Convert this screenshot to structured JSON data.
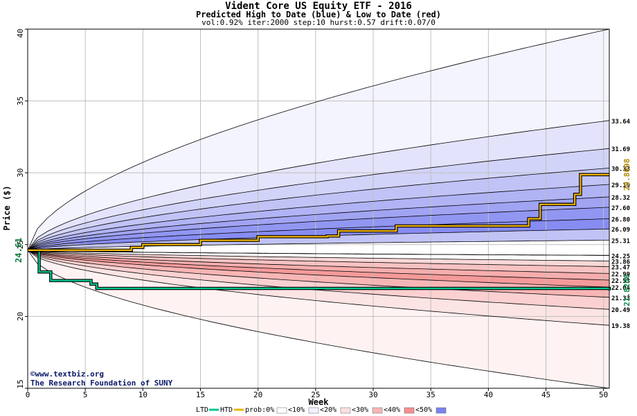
{
  "header": {
    "title": "Vident Core US Equity ETF - 2016",
    "subtitle": "Predicted High to Date (blue) &  Low to Date (red)",
    "params": "vol:0.92% iter:2000 step:10 hurst:0.57 drift:0.07/0"
  },
  "credits": {
    "site": "©www.textbiz.org",
    "org": "The Research Foundation of SUNY"
  },
  "legend": {
    "ltd": "LTD",
    "htd": "HTD",
    "prob": "prob:0%",
    "lt10": "<10%",
    "lt20": "<20%",
    "lt30": "<30%",
    "lt40": "<40%",
    "lt50": "<50%"
  },
  "colors": {
    "htd_line": "#f0b400",
    "ltd_line": "#00c890",
    "blue_band": "#8a8ff2",
    "red_band": "#f58f8f",
    "grid": "#bfbfbf"
  },
  "chart_data": {
    "type": "area",
    "xlabel": "Week",
    "ylabel": "Price ($)",
    "xlim": [
      0,
      50.5
    ],
    "ylim": [
      15,
      40
    ],
    "xticks": [
      0,
      5,
      10,
      15,
      20,
      25,
      30,
      35,
      40,
      45,
      50
    ],
    "yticks": [
      15,
      20,
      25,
      30,
      35,
      40
    ],
    "start_price": "24.61",
    "high_percentile_end_values": [
      "40.00",
      "33.64",
      "31.69",
      "30.33",
      "29.19",
      "28.32",
      "27.60",
      "26.80",
      "26.09",
      "25.31",
      "24.25"
    ],
    "low_percentile_end_values": [
      "24.25",
      "23.86",
      "23.47",
      "22.99",
      "22.53",
      "22.04",
      "21.33",
      "20.49",
      "19.38",
      "15.00"
    ],
    "htd_final_label": "29.8698",
    "ltd_final_label": "21.8206",
    "htd_series": [
      [
        0,
        24.61
      ],
      [
        9,
        24.8
      ],
      [
        10,
        25.0
      ],
      [
        15,
        25.3
      ],
      [
        20,
        25.55
      ],
      [
        26,
        25.6
      ],
      [
        27,
        25.95
      ],
      [
        32,
        26.3
      ],
      [
        43.5,
        26.8
      ],
      [
        44.5,
        27.8
      ],
      [
        47.5,
        28.5
      ],
      [
        48,
        29.87
      ],
      [
        50.5,
        29.87
      ]
    ],
    "ltd_series": [
      [
        0,
        24.61
      ],
      [
        1,
        23.1
      ],
      [
        2,
        22.5
      ],
      [
        5.5,
        22.25
      ],
      [
        6,
        21.95
      ],
      [
        50.5,
        21.82
      ]
    ]
  }
}
